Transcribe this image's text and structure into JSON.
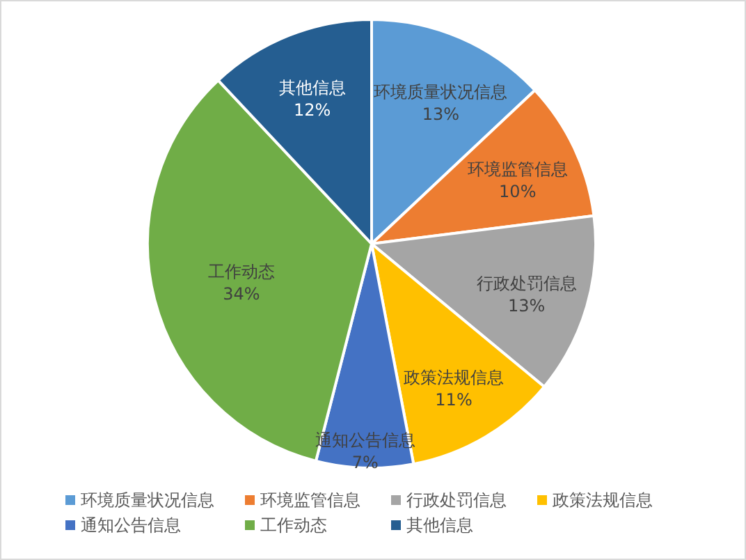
{
  "chart_data": {
    "type": "pie",
    "categories": [
      "环境质量状况信息",
      "环境监管信息",
      "行政处罚信息",
      "政策法规信息",
      "通知公告信息",
      "工作动态",
      "其他信息"
    ],
    "values": [
      13,
      10,
      13,
      11,
      7,
      34,
      12
    ],
    "value_labels": [
      "13%",
      "10%",
      "13%",
      "11%",
      "7%",
      "34%",
      "12%"
    ],
    "colors": [
      "#5b9bd5",
      "#ed7d31",
      "#a5a5a5",
      "#ffc000",
      "#4472c4",
      "#70ad47",
      "#255e91"
    ],
    "legend": "bottom"
  }
}
